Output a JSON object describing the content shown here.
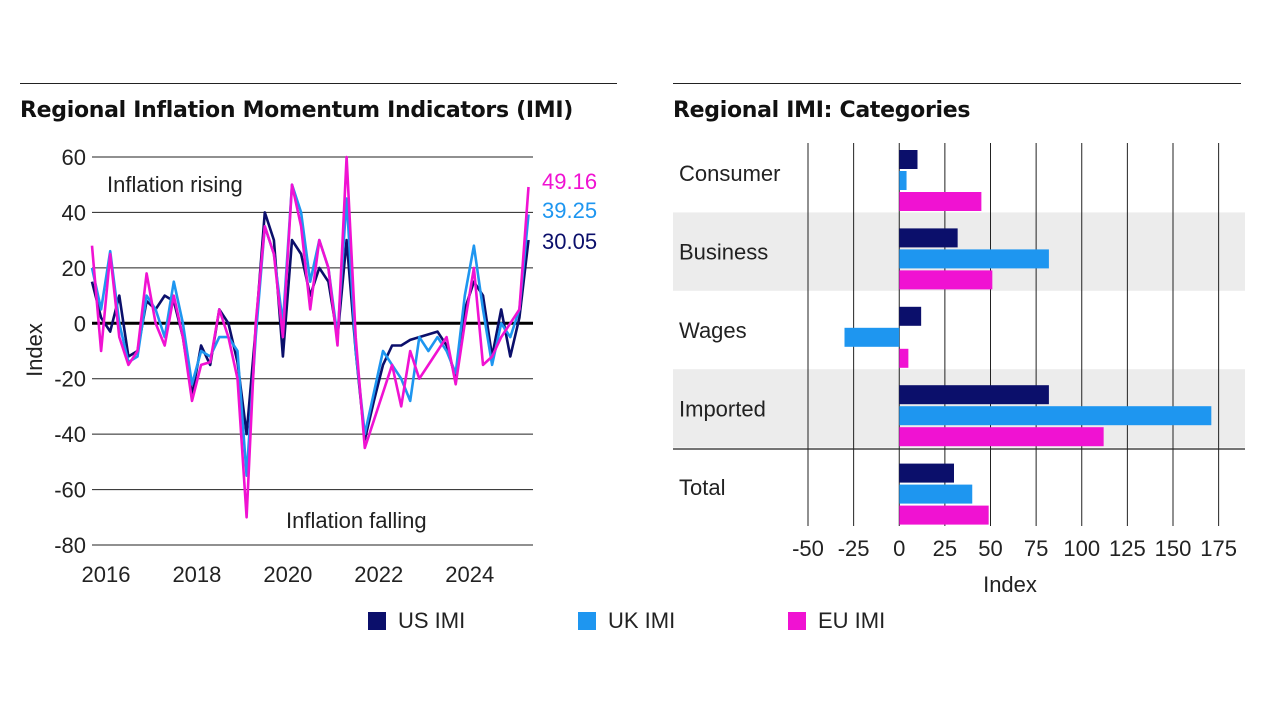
{
  "colors": {
    "us": "#0b0f6b",
    "uk": "#1e96f0",
    "eu": "#f012d2",
    "grid": "#222222",
    "band": "#ececec"
  },
  "legend": [
    {
      "key": "us",
      "label": "US IMI"
    },
    {
      "key": "uk",
      "label": "UK IMI"
    },
    {
      "key": "eu",
      "label": "EU IMI"
    }
  ],
  "chart_data": [
    {
      "type": "line",
      "title": "Regional Inflation Momentum Indicators (IMI)",
      "ylabel": "Index",
      "xlabel": "",
      "ylim": [
        -80,
        60
      ],
      "yticks": [
        60,
        40,
        20,
        0,
        -20,
        -40,
        -60,
        -80
      ],
      "xlim": [
        2016,
        2025.7
      ],
      "xticks": [
        2016,
        2018,
        2020,
        2022,
        2024
      ],
      "annotations": [
        "Inflation rising",
        "Inflation falling"
      ],
      "end_labels": [
        "49.16",
        "39.25",
        "30.05"
      ],
      "series": [
        {
          "name": "US IMI",
          "key": "us",
          "x": [
            2016.0,
            2016.2,
            2016.4,
            2016.6,
            2016.8,
            2017.0,
            2017.2,
            2017.4,
            2017.6,
            2017.8,
            2018.0,
            2018.2,
            2018.4,
            2018.6,
            2018.8,
            2019.0,
            2019.2,
            2019.4,
            2019.6,
            2019.8,
            2020.0,
            2020.2,
            2020.4,
            2020.6,
            2020.8,
            2021.0,
            2021.2,
            2021.4,
            2021.6,
            2021.8,
            2022.0,
            2022.2,
            2022.4,
            2022.6,
            2022.8,
            2023.0,
            2023.2,
            2023.4,
            2023.6,
            2023.8,
            2024.0,
            2024.2,
            2024.4,
            2024.6,
            2024.8,
            2025.0,
            2025.2,
            2025.4,
            2025.6
          ],
          "y": [
            15,
            2,
            -3,
            10,
            -12,
            -10,
            8,
            5,
            10,
            8,
            -5,
            -26,
            -8,
            -15,
            5,
            0,
            -14,
            -40,
            -2,
            40,
            30,
            -12,
            30,
            25,
            10,
            20,
            15,
            -5,
            30,
            -10,
            -42,
            -28,
            -15,
            -8,
            -8,
            -6,
            -5,
            -4,
            -3,
            -8,
            -20,
            5,
            15,
            10,
            -12,
            5,
            -12,
            2,
            30.05
          ]
        },
        {
          "name": "UK IMI",
          "key": "uk",
          "x": [
            2016.0,
            2016.2,
            2016.4,
            2016.6,
            2016.8,
            2017.0,
            2017.2,
            2017.4,
            2017.6,
            2017.8,
            2018.0,
            2018.2,
            2018.4,
            2018.6,
            2018.8,
            2019.0,
            2019.2,
            2019.4,
            2019.6,
            2019.8,
            2020.0,
            2020.2,
            2020.4,
            2020.6,
            2020.8,
            2021.0,
            2021.2,
            2021.4,
            2021.6,
            2021.8,
            2022.0,
            2022.2,
            2022.4,
            2022.6,
            2022.8,
            2023.0,
            2023.2,
            2023.4,
            2023.6,
            2023.8,
            2024.0,
            2024.2,
            2024.4,
            2024.6,
            2024.8,
            2025.0,
            2025.2,
            2025.4,
            2025.6
          ],
          "y": [
            20,
            5,
            26,
            0,
            -14,
            -12,
            10,
            5,
            -5,
            15,
            0,
            -22,
            -10,
            -12,
            -5,
            -5,
            -10,
            -55,
            -5,
            35,
            25,
            0,
            50,
            40,
            15,
            30,
            20,
            -5,
            45,
            -10,
            -40,
            -25,
            -10,
            -15,
            -20,
            -28,
            -5,
            -10,
            -5,
            -10,
            -18,
            10,
            28,
            5,
            -15,
            0,
            -5,
            5,
            39.25
          ]
        },
        {
          "name": "EU IMI",
          "key": "eu",
          "x": [
            2016.0,
            2016.2,
            2016.4,
            2016.6,
            2016.8,
            2017.0,
            2017.2,
            2017.4,
            2017.6,
            2017.8,
            2018.0,
            2018.2,
            2018.4,
            2018.6,
            2018.8,
            2019.0,
            2019.2,
            2019.4,
            2019.6,
            2019.8,
            2020.0,
            2020.2,
            2020.4,
            2020.6,
            2020.8,
            2021.0,
            2021.2,
            2021.4,
            2021.6,
            2021.8,
            2022.0,
            2022.2,
            2022.4,
            2022.6,
            2022.8,
            2023.0,
            2023.2,
            2023.4,
            2023.6,
            2023.8,
            2024.0,
            2024.2,
            2024.4,
            2024.6,
            2024.8,
            2025.0,
            2025.2,
            2025.4,
            2025.6
          ],
          "y": [
            28,
            -10,
            25,
            -5,
            -15,
            -10,
            18,
            0,
            -8,
            10,
            -5,
            -28,
            -15,
            -14,
            5,
            -5,
            -20,
            -70,
            0,
            35,
            25,
            -5,
            50,
            35,
            5,
            30,
            20,
            -8,
            60,
            -5,
            -45,
            -35,
            -25,
            -15,
            -30,
            -10,
            -20,
            -15,
            -10,
            -5,
            -22,
            0,
            20,
            -15,
            -12,
            -5,
            0,
            5,
            49.16
          ]
        }
      ]
    },
    {
      "type": "bar",
      "orientation": "horizontal",
      "title": "Regional IMI: Categories",
      "xlabel": "Index",
      "ylabel": "",
      "xlim": [
        -50,
        190
      ],
      "xticks": [
        -50,
        -25,
        0,
        25,
        50,
        75,
        100,
        125,
        150,
        175
      ],
      "categories": [
        "Consumer",
        "Business",
        "Wages",
        "Imported",
        "Total"
      ],
      "series": [
        {
          "name": "US IMI",
          "key": "us",
          "values": [
            10,
            32,
            12,
            82,
            30
          ]
        },
        {
          "name": "UK IMI",
          "key": "uk",
          "values": [
            4,
            82,
            -30,
            171,
            40
          ]
        },
        {
          "name": "EU IMI",
          "key": "eu",
          "values": [
            45,
            51,
            5,
            112,
            49
          ]
        }
      ]
    }
  ]
}
